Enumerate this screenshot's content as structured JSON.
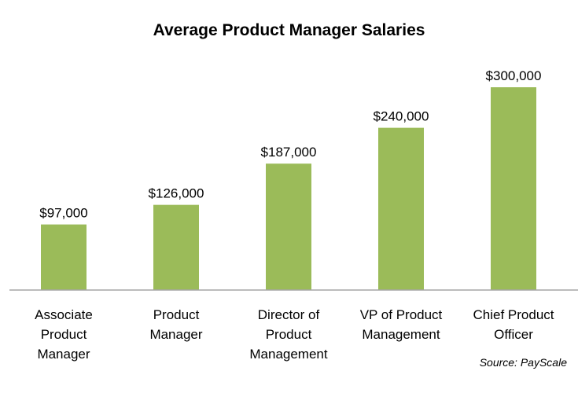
{
  "chart_data": {
    "type": "bar",
    "title": "Average Product Manager Salaries",
    "categories": [
      "Associate\nProduct\nManager",
      "Product\nManager",
      "Director of\nProduct\nManagement",
      "VP of Product\nManagement",
      "Chief Product\nOfficer"
    ],
    "values": [
      97000,
      126000,
      187000,
      240000,
      300000
    ],
    "data_labels": [
      "$97,000",
      "$126,000",
      "$187,000",
      "$240,000",
      "$300,000"
    ],
    "ylim": [
      0,
      300000
    ],
    "bar_color": "#9bbb59",
    "grid": false,
    "legend": "none",
    "source": "Source: PayScale"
  }
}
